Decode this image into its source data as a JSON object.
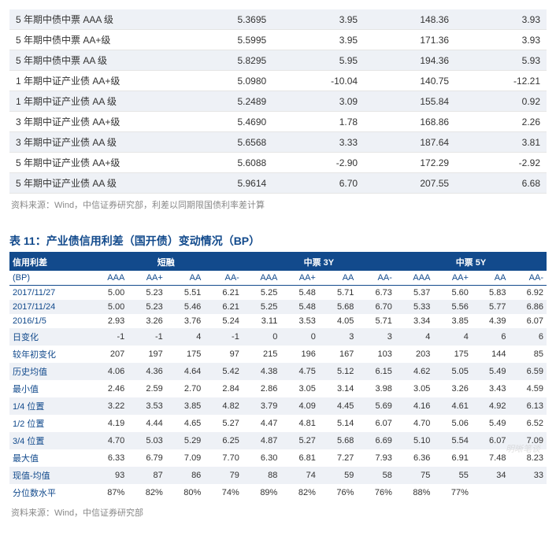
{
  "table1": {
    "rows": [
      {
        "label": "5 年期中债中票 AAA 级",
        "v": [
          "5.3695",
          "3.95",
          "148.36",
          "3.93"
        ],
        "stripe": true
      },
      {
        "label": "5 年期中债中票 AA+级",
        "v": [
          "5.5995",
          "3.95",
          "171.36",
          "3.93"
        ],
        "stripe": false
      },
      {
        "label": "5 年期中债中票 AA 级",
        "v": [
          "5.8295",
          "5.95",
          "194.36",
          "5.93"
        ],
        "stripe": true
      },
      {
        "label": "1 年期中证产业债 AA+级",
        "v": [
          "5.0980",
          "-10.04",
          "140.75",
          "-12.21"
        ],
        "stripe": false
      },
      {
        "label": "1 年期中证产业债 AA 级",
        "v": [
          "5.2489",
          "3.09",
          "155.84",
          "0.92"
        ],
        "stripe": true
      },
      {
        "label": "3 年期中证产业债 AA+级",
        "v": [
          "5.4690",
          "1.78",
          "168.86",
          "2.26"
        ],
        "stripe": false
      },
      {
        "label": "3 年期中证产业债 AA 级",
        "v": [
          "5.6568",
          "3.33",
          "187.64",
          "3.81"
        ],
        "stripe": true
      },
      {
        "label": "5 年期中证产业债 AA+级",
        "v": [
          "5.6088",
          "-2.90",
          "172.29",
          "-2.92"
        ],
        "stripe": false
      },
      {
        "label": "5 年期中证产业债 AA 级",
        "v": [
          "5.9614",
          "6.70",
          "207.55",
          "6.68"
        ],
        "stripe": true
      }
    ],
    "source": "资料来源：Wind，中信证券研究部，利差以同期限国债利率差计算"
  },
  "table2": {
    "title": "表 11：产业债信用利差（国开债）变动情况（BP）",
    "header_groups": [
      "信用利差",
      "短融",
      "中票 3Y",
      "中票 5Y"
    ],
    "unit": "(BP)",
    "sub_cols": [
      "AAA",
      "AA+",
      "AA",
      "AA-",
      "AAA",
      "AA+",
      "AA",
      "AA-",
      "AAA",
      "AA+",
      "AA",
      "AA-"
    ],
    "rows": [
      {
        "label": "2017/11/27",
        "v": [
          "5.00",
          "5.23",
          "5.51",
          "6.21",
          "5.25",
          "5.48",
          "5.71",
          "6.73",
          "5.37",
          "5.60",
          "5.83",
          "6.92"
        ],
        "stripe": false
      },
      {
        "label": "2017/11/24",
        "v": [
          "5.00",
          "5.23",
          "5.46",
          "6.21",
          "5.25",
          "5.48",
          "5.68",
          "6.70",
          "5.33",
          "5.56",
          "5.77",
          "6.86"
        ],
        "stripe": true
      },
      {
        "label": "2016/1/5",
        "v": [
          "2.93",
          "3.26",
          "3.76",
          "5.24",
          "3.11",
          "3.53",
          "4.05",
          "5.71",
          "3.34",
          "3.85",
          "4.39",
          "6.07"
        ],
        "stripe": false
      },
      {
        "label": "日变化",
        "v": [
          "-1",
          "-1",
          "4",
          "-1",
          "0",
          "0",
          "3",
          "3",
          "4",
          "4",
          "6",
          "6"
        ],
        "stripe": true
      },
      {
        "label": "较年初变化",
        "v": [
          "207",
          "197",
          "175",
          "97",
          "215",
          "196",
          "167",
          "103",
          "203",
          "175",
          "144",
          "85"
        ],
        "stripe": false
      },
      {
        "label": "历史均值",
        "v": [
          "4.06",
          "4.36",
          "4.64",
          "5.42",
          "4.38",
          "4.75",
          "5.12",
          "6.15",
          "4.62",
          "5.05",
          "5.49",
          "6.59"
        ],
        "stripe": true
      },
      {
        "label": "最小值",
        "v": [
          "2.46",
          "2.59",
          "2.70",
          "2.84",
          "2.86",
          "3.05",
          "3.14",
          "3.98",
          "3.05",
          "3.26",
          "3.43",
          "4.59"
        ],
        "stripe": false
      },
      {
        "label": "1/4 位置",
        "v": [
          "3.22",
          "3.53",
          "3.85",
          "4.82",
          "3.79",
          "4.09",
          "4.45",
          "5.69",
          "4.16",
          "4.61",
          "4.92",
          "6.13"
        ],
        "stripe": true
      },
      {
        "label": "1/2 位置",
        "v": [
          "4.19",
          "4.44",
          "4.65",
          "5.27",
          "4.47",
          "4.81",
          "5.14",
          "6.07",
          "4.70",
          "5.06",
          "5.49",
          "6.52"
        ],
        "stripe": false
      },
      {
        "label": "3/4 位置",
        "v": [
          "4.70",
          "5.03",
          "5.29",
          "6.25",
          "4.87",
          "5.27",
          "5.68",
          "6.69",
          "5.10",
          "5.54",
          "6.07",
          "7.09"
        ],
        "stripe": true
      },
      {
        "label": "最大值",
        "v": [
          "6.33",
          "6.79",
          "7.09",
          "7.70",
          "6.30",
          "6.81",
          "7.27",
          "7.93",
          "6.36",
          "6.91",
          "7.48",
          "8.23"
        ],
        "stripe": false
      },
      {
        "label": "现值-均值",
        "v": [
          "93",
          "87",
          "86",
          "79",
          "88",
          "74",
          "59",
          "58",
          "75",
          "55",
          "34",
          "33"
        ],
        "stripe": true
      },
      {
        "label": "分位数水平",
        "v": [
          "87%",
          "82%",
          "80%",
          "74%",
          "89%",
          "82%",
          "76%",
          "76%",
          "88%",
          "77%",
          "",
          ""
        ],
        "stripe": false
      }
    ],
    "source": "资料来源：Wind，中信证券研究部"
  },
  "watermark": "明晰笔谈"
}
